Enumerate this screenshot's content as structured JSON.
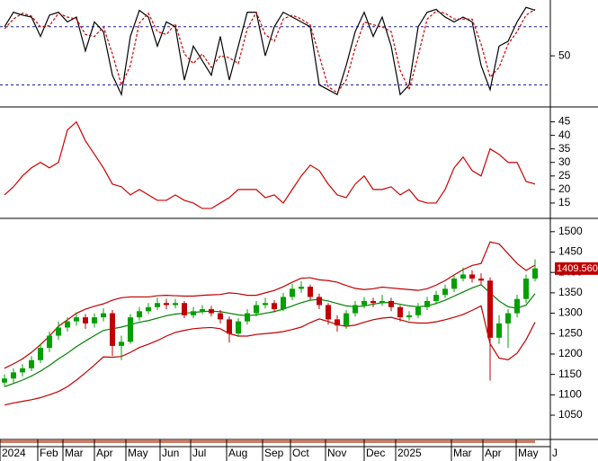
{
  "chart_data": [
    {
      "type": "line",
      "xlim": [
        -0.5,
        60.7
      ],
      "ylim": [
        0,
        103
      ],
      "yticks": [
        50
      ],
      "reference_lines": [
        20,
        80
      ],
      "reference_color": "#1a1aa0",
      "series": [
        {
          "color": "#000000",
          "dash": false,
          "values": [
            80,
            95,
            92,
            90,
            70,
            92,
            95,
            85,
            90,
            55,
            85,
            75,
            30,
            10,
            70,
            97,
            90,
            60,
            85,
            80,
            25,
            60,
            45,
            30,
            70,
            25,
            60,
            95,
            95,
            50,
            80,
            95,
            90,
            85,
            80,
            20,
            15,
            10,
            40,
            75,
            95,
            70,
            90,
            60,
            10,
            20,
            80,
            95,
            98,
            90,
            85,
            90,
            85,
            40,
            15,
            60,
            65,
            85,
            100,
            97
          ]
        },
        {
          "color": "#cc0000",
          "dash": true,
          "values": [
            78,
            88,
            94,
            91,
            80,
            81,
            94,
            90,
            88,
            72,
            70,
            80,
            52,
            20,
            40,
            84,
            94,
            75,
            72,
            83,
            52,
            42,
            52,
            38,
            50,
            48,
            42,
            78,
            95,
            72,
            65,
            88,
            92,
            88,
            82,
            50,
            18,
            12,
            25,
            58,
            85,
            82,
            80,
            75,
            35,
            15,
            50,
            88,
            96,
            94,
            88,
            88,
            88,
            62,
            28,
            38,
            62,
            75,
            92,
            98
          ]
        }
      ]
    },
    {
      "type": "line",
      "xlim": [
        -0.5,
        60.7
      ],
      "ylim": [
        10,
        49.5
      ],
      "yticks": [
        15,
        20,
        25,
        30,
        35,
        40,
        45
      ],
      "series": [
        {
          "color": "#cc0000",
          "dash": false,
          "values": [
            18,
            21,
            25,
            28,
            30,
            28,
            30,
            42,
            45,
            38,
            33,
            28,
            22,
            21,
            18,
            20,
            18,
            16,
            16,
            18,
            16,
            15,
            13,
            13,
            15,
            17,
            20,
            20,
            20,
            17,
            18,
            15,
            20,
            25,
            29,
            27,
            22,
            18,
            17,
            22,
            25,
            20,
            20,
            21,
            18,
            20,
            16,
            15,
            15,
            20,
            28,
            32,
            27,
            25,
            35,
            33,
            30,
            30,
            23,
            22
          ]
        }
      ]
    },
    {
      "type": "candlestick",
      "xlim": [
        -0.5,
        60.7
      ],
      "ylim": [
        995,
        1526
      ],
      "yticks": [
        1050,
        1100,
        1150,
        1200,
        1250,
        1300,
        1350,
        1400,
        1450,
        1500
      ],
      "xticks": [
        {
          "value": -0.5,
          "label": "2024"
        },
        {
          "value": 3.7,
          "label": "Feb"
        },
        {
          "value": 6.5,
          "label": "Mar"
        },
        {
          "value": 10,
          "label": "Apr"
        },
        {
          "value": 13.5,
          "label": "May"
        },
        {
          "value": 17.3,
          "label": "Jun"
        },
        {
          "value": 20.7,
          "label": "Jul"
        },
        {
          "value": 24.7,
          "label": "Aug"
        },
        {
          "value": 28.7,
          "label": "Sep"
        },
        {
          "value": 31.8,
          "label": "Oct"
        },
        {
          "value": 35.7,
          "label": "Nov"
        },
        {
          "value": 40,
          "label": "Dec"
        },
        {
          "value": 43.5,
          "label": "2025"
        },
        {
          "value": 49.7,
          "label": "Mar"
        },
        {
          "value": 53.2,
          "label": "Apr"
        },
        {
          "value": 56.9,
          "label": "May"
        },
        {
          "value": 60.7,
          "label": "J"
        }
      ],
      "up_color": "#00a000",
      "down_color": "#c00000",
      "last_price": {
        "value": 1409.56,
        "label": "1409.560"
      },
      "open": [
        1130,
        1140,
        1155,
        1165,
        1185,
        1215,
        1245,
        1265,
        1280,
        1290,
        1275,
        1290,
        1300,
        1220,
        1230,
        1290,
        1305,
        1315,
        1325,
        1320,
        1325,
        1295,
        1305,
        1310,
        1300,
        1285,
        1250,
        1280,
        1300,
        1320,
        1325,
        1310,
        1340,
        1360,
        1365,
        1340,
        1320,
        1285,
        1270,
        1300,
        1320,
        1330,
        1325,
        1330,
        1315,
        1290,
        1295,
        1315,
        1330,
        1345,
        1360,
        1385,
        1395,
        1385,
        1380,
        1240,
        1275,
        1300,
        1335,
        1385
      ],
      "high": [
        1150,
        1165,
        1175,
        1195,
        1225,
        1255,
        1280,
        1290,
        1302,
        1298,
        1300,
        1312,
        1308,
        1245,
        1298,
        1315,
        1325,
        1338,
        1335,
        1335,
        1330,
        1315,
        1320,
        1318,
        1308,
        1292,
        1288,
        1310,
        1330,
        1338,
        1332,
        1350,
        1372,
        1378,
        1370,
        1348,
        1325,
        1295,
        1308,
        1330,
        1340,
        1338,
        1345,
        1338,
        1320,
        1305,
        1325,
        1340,
        1355,
        1370,
        1395,
        1412,
        1405,
        1398,
        1388,
        1295,
        1310,
        1345,
        1395,
        1432
      ],
      "low": [
        1120,
        1130,
        1145,
        1158,
        1178,
        1205,
        1235,
        1255,
        1270,
        1262,
        1265,
        1280,
        1195,
        1185,
        1225,
        1282,
        1298,
        1308,
        1310,
        1312,
        1288,
        1288,
        1298,
        1292,
        1275,
        1228,
        1242,
        1272,
        1292,
        1312,
        1302,
        1305,
        1332,
        1350,
        1332,
        1310,
        1272,
        1255,
        1262,
        1292,
        1312,
        1315,
        1318,
        1305,
        1280,
        1282,
        1288,
        1308,
        1322,
        1338,
        1352,
        1378,
        1375,
        1370,
        1135,
        1225,
        1215,
        1290,
        1325,
        1378
      ],
      "close": [
        1140,
        1155,
        1165,
        1185,
        1215,
        1245,
        1265,
        1280,
        1290,
        1275,
        1290,
        1300,
        1220,
        1230,
        1290,
        1305,
        1315,
        1325,
        1320,
        1325,
        1295,
        1305,
        1310,
        1300,
        1285,
        1250,
        1280,
        1300,
        1320,
        1325,
        1310,
        1340,
        1360,
        1365,
        1340,
        1320,
        1285,
        1270,
        1300,
        1320,
        1330,
        1325,
        1330,
        1315,
        1290,
        1295,
        1315,
        1330,
        1345,
        1360,
        1385,
        1395,
        1385,
        1380,
        1240,
        1275,
        1300,
        1335,
        1385,
        1410
      ],
      "series": [
        {
          "color": "#c00000",
          "values": [
            1165,
            1176,
            1188,
            1204,
            1223,
            1244,
            1268,
            1284,
            1300,
            1310,
            1317,
            1323,
            1332,
            1338,
            1340,
            1340,
            1340,
            1343,
            1344,
            1343,
            1342,
            1342,
            1344,
            1345,
            1346,
            1350,
            1348,
            1344,
            1344,
            1350,
            1356,
            1365,
            1376,
            1386,
            1387,
            1382,
            1380,
            1376,
            1368,
            1361,
            1358,
            1360,
            1364,
            1362,
            1360,
            1358,
            1356,
            1360,
            1369,
            1380,
            1394,
            1407,
            1417,
            1422,
            1475,
            1470,
            1446,
            1422,
            1405,
            1418
          ]
        },
        {
          "color": "#008000",
          "values": [
            1120,
            1128,
            1136,
            1146,
            1158,
            1172,
            1188,
            1202,
            1218,
            1232,
            1245,
            1258,
            1262,
            1266,
            1272,
            1278,
            1282,
            1288,
            1294,
            1298,
            1300,
            1302,
            1304,
            1305,
            1304,
            1300,
            1296,
            1294,
            1296,
            1300,
            1304,
            1310,
            1318,
            1326,
            1332,
            1334,
            1330,
            1324,
            1318,
            1316,
            1318,
            1322,
            1326,
            1326,
            1322,
            1318,
            1316,
            1318,
            1324,
            1332,
            1342,
            1352,
            1362,
            1370,
            1350,
            1330,
            1316,
            1312,
            1320,
            1348
          ]
        },
        {
          "color": "#c00000",
          "values": [
            1075,
            1080,
            1084,
            1088,
            1093,
            1100,
            1108,
            1120,
            1136,
            1154,
            1173,
            1193,
            1192,
            1194,
            1204,
            1216,
            1224,
            1233,
            1244,
            1253,
            1258,
            1262,
            1264,
            1265,
            1262,
            1250,
            1244,
            1244,
            1248,
            1250,
            1252,
            1255,
            1260,
            1266,
            1277,
            1286,
            1280,
            1272,
            1268,
            1271,
            1278,
            1284,
            1288,
            1290,
            1284,
            1278,
            1276,
            1276,
            1279,
            1284,
            1290,
            1297,
            1307,
            1318,
            1225,
            1190,
            1186,
            1202,
            1235,
            1278
          ]
        }
      ]
    }
  ]
}
